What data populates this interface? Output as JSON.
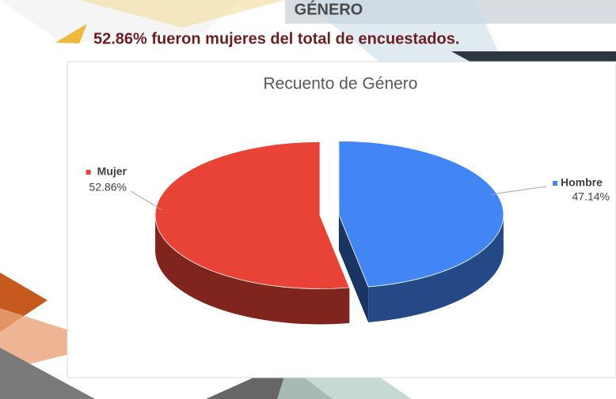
{
  "slide": {
    "heading": "GÉNERO",
    "subtitle": "52.86% fueron mujeres del total de encuestados."
  },
  "chart_data": {
    "type": "pie",
    "title": "Recuento de Género",
    "categories": [
      "Mujer",
      "Hombre"
    ],
    "values": [
      52.86,
      47.14
    ],
    "value_labels": [
      "52.86%",
      "47.14%"
    ],
    "colors": [
      "#e84336",
      "#4285f4"
    ]
  }
}
